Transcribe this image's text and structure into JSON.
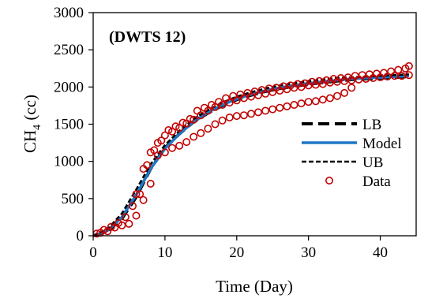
{
  "chart_data": {
    "type": "line",
    "annotation": "(DWTS 12)",
    "xlabel": "Time (Day)",
    "ylabel_main": "CH",
    "ylabel_sub": "4",
    "ylabel_unit": " (cc)",
    "xlim": [
      0,
      45
    ],
    "ylim": [
      0,
      3000
    ],
    "xticks": [
      0,
      10,
      20,
      30,
      40
    ],
    "yticks": [
      0,
      500,
      1000,
      1500,
      2000,
      2500,
      3000
    ],
    "grid": false,
    "legend_position": "right",
    "series": [
      {
        "name": "LB",
        "style": "long-dash",
        "color": "#000000",
        "x": [
          0,
          2,
          4,
          6,
          8,
          10,
          12,
          14,
          16,
          18,
          20,
          22,
          24,
          26,
          28,
          30,
          32,
          34,
          36,
          38,
          40,
          42,
          44
        ],
        "y": [
          0,
          60,
          230,
          520,
          900,
          1180,
          1370,
          1530,
          1650,
          1750,
          1830,
          1890,
          1940,
          1980,
          2010,
          2040,
          2060,
          2080,
          2100,
          2110,
          2120,
          2130,
          2140
        ]
      },
      {
        "name": "Model",
        "style": "solid",
        "color": "#1f77c4",
        "x": [
          0,
          2,
          4,
          6,
          8,
          10,
          12,
          14,
          16,
          18,
          20,
          22,
          24,
          26,
          28,
          30,
          32,
          34,
          36,
          38,
          40,
          42,
          44
        ],
        "y": [
          0,
          70,
          250,
          550,
          900,
          1170,
          1370,
          1530,
          1660,
          1760,
          1840,
          1900,
          1950,
          1990,
          2020,
          2050,
          2070,
          2090,
          2110,
          2120,
          2130,
          2140,
          2150
        ]
      },
      {
        "name": "UB",
        "style": "short-dash",
        "color": "#000000",
        "x": [
          0,
          2,
          4,
          6,
          8,
          10,
          12,
          14,
          16,
          18,
          20,
          22,
          24,
          26,
          28,
          30,
          32,
          34,
          36,
          38,
          40,
          42,
          44
        ],
        "y": [
          0,
          90,
          300,
          620,
          960,
          1220,
          1410,
          1570,
          1690,
          1790,
          1870,
          1930,
          1980,
          2020,
          2050,
          2080,
          2100,
          2120,
          2130,
          2140,
          2150,
          2160,
          2170
        ]
      }
    ],
    "scatter": {
      "name": "Data",
      "color": "#c00000",
      "groups": [
        {
          "x": [
            0.5,
            1.5,
            2.5,
            3.5,
            4.5,
            5.5,
            6.5,
            7.5,
            8.5,
            9.5,
            10.5,
            11.5,
            12.5,
            13.5,
            14.5,
            15.5,
            16.5,
            17.5,
            18.5,
            19.5,
            20.5,
            21.5,
            22.5,
            23.5,
            24.5,
            25.5,
            26.5,
            27.5,
            28.5,
            29.5,
            30.5,
            31.5,
            32.5,
            33.5,
            34.5,
            35.5,
            36.5,
            37.5,
            38.5,
            39.5,
            40.5,
            41.5,
            42.5,
            43.5,
            44.0
          ],
          "y": [
            30,
            80,
            120,
            170,
            250,
            400,
            560,
            950,
            1150,
            1280,
            1420,
            1470,
            1520,
            1570,
            1680,
            1720,
            1760,
            1800,
            1850,
            1880,
            1900,
            1920,
            1940,
            1960,
            1980,
            1990,
            2010,
            2020,
            2040,
            2050,
            2070,
            2080,
            2090,
            2110,
            2120,
            2130,
            2150,
            2160,
            2170,
            2180,
            2190,
            2210,
            2230,
            2250,
            2280
          ]
        },
        {
          "x": [
            1.0,
            2.0,
            3.0,
            4.0,
            5.0,
            6.0,
            7.0,
            8.0,
            9.0,
            10.0,
            11.0,
            12.0,
            13.0,
            14.0,
            15.0,
            16.0,
            17.0,
            18.0,
            19.0,
            20.0,
            21.0,
            22.0,
            23.0,
            24.0,
            25.0,
            26.0,
            27.0,
            28.0,
            29.0,
            30.0,
            31.0,
            32.0,
            33.0,
            34.0,
            35.0,
            36.0
          ],
          "y": [
            40,
            60,
            110,
            140,
            160,
            270,
            480,
            700,
            1080,
            1120,
            1180,
            1210,
            1260,
            1330,
            1380,
            1440,
            1500,
            1550,
            1590,
            1610,
            1620,
            1640,
            1660,
            1680,
            1700,
            1720,
            1740,
            1760,
            1780,
            1800,
            1810,
            1830,
            1850,
            1880,
            1920,
            1990
          ]
        },
        {
          "x": [
            6.0,
            7.0,
            8.0,
            9.0,
            10.0,
            11.0,
            12.0,
            13.0,
            14.0,
            15.0,
            16.0,
            17.0,
            18.0,
            19.0,
            20.0,
            21.0,
            22.0,
            23.0,
            24.0,
            25.0,
            26.0,
            27.0,
            28.0,
            29.0,
            30.0,
            31.0,
            32.0,
            33.0,
            34.0,
            35.0,
            36.0,
            37.0,
            38.0,
            39.0,
            40.0,
            41.0,
            42.0,
            43.0,
            44.0
          ],
          "y": [
            560,
            900,
            1120,
            1250,
            1350,
            1400,
            1450,
            1510,
            1560,
            1620,
            1680,
            1730,
            1760,
            1790,
            1820,
            1850,
            1870,
            1890,
            1910,
            1930,
            1950,
            1970,
            1990,
            2000,
            2020,
            2030,
            2040,
            2060,
            2070,
            2080,
            2090,
            2100,
            2110,
            2120,
            2130,
            2140,
            2150,
            2150,
            2160
          ]
        }
      ]
    }
  }
}
